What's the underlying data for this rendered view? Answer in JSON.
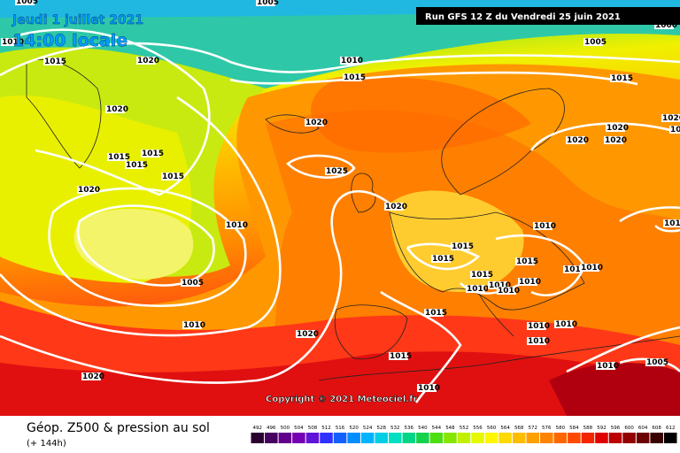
{
  "header": {
    "date": "Jeudi 1 juillet 2021",
    "time": "14:00 locale",
    "run": "Run GFS 12 Z du Vendredi 25 juin 2021"
  },
  "copyright": "Copyright © 2021 Meteociel.fr",
  "footer": {
    "title": "Géop. Z500 & pression au sol",
    "lead": "(+ 144h)"
  },
  "legend": [
    492,
    496,
    500,
    504,
    508,
    512,
    516,
    520,
    524,
    528,
    532,
    536,
    540,
    544,
    548,
    552,
    556,
    560,
    564,
    568,
    572,
    576,
    580,
    584,
    588,
    592,
    596,
    600,
    604,
    608,
    612
  ],
  "isobar_labels": [
    1005,
    1005,
    1010,
    1015,
    1020,
    1010,
    1015,
    1005,
    1000,
    1015,
    1020,
    1020,
    1020,
    1020,
    1020,
    1020,
    1020,
    1015,
    1015,
    1015,
    1025,
    1015,
    1020,
    1020,
    1010,
    1010,
    1010,
    1015,
    1015,
    1015,
    1010,
    1010,
    1005,
    1015,
    1010,
    1010,
    1010,
    1010,
    1015,
    1010,
    1020,
    1010,
    1010,
    1010,
    1015,
    1010,
    1005,
    1020,
    1010
  ]
}
